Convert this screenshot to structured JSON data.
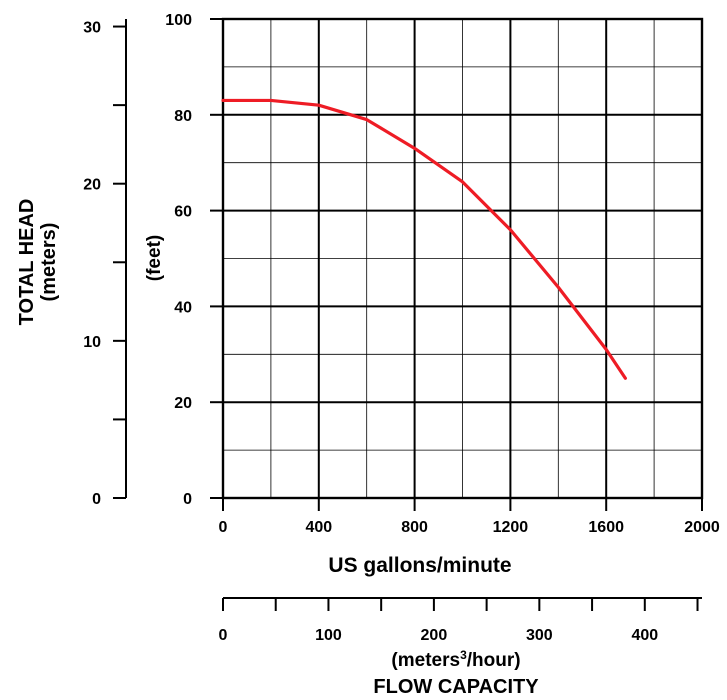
{
  "chart_data": {
    "type": "line",
    "x_label": "US gallons/minute",
    "y_label": "(feet)",
    "left_axis_title": "TOTAL HEAD",
    "left_axis_unit": "(meters)",
    "bottom_axis_unit_pre": "(meters",
    "bottom_axis_unit_sup": "3",
    "bottom_axis_unit_post": "/hour)",
    "bottom_axis_title": "FLOW CAPACITY",
    "xlim": [
      0,
      2000
    ],
    "ylim": [
      0,
      100
    ],
    "x_ticks": [
      "0",
      "400",
      "800",
      "1200",
      "1600",
      "2000"
    ],
    "y_ticks": [
      "0",
      "20",
      "40",
      "60",
      "80",
      "100"
    ],
    "meters_ticks": [
      "0",
      "10",
      "20",
      "30"
    ],
    "m3h_ticks": [
      "0",
      "100",
      "200",
      "300",
      "400"
    ],
    "grid": true,
    "line_color": "#ee1c25",
    "series": [
      {
        "x": [
          0,
          200,
          400,
          600,
          800,
          1000,
          1200,
          1400,
          1600,
          1680
        ],
        "y": [
          83,
          83,
          82,
          79,
          73,
          66,
          56,
          44,
          31,
          25
        ]
      }
    ]
  }
}
